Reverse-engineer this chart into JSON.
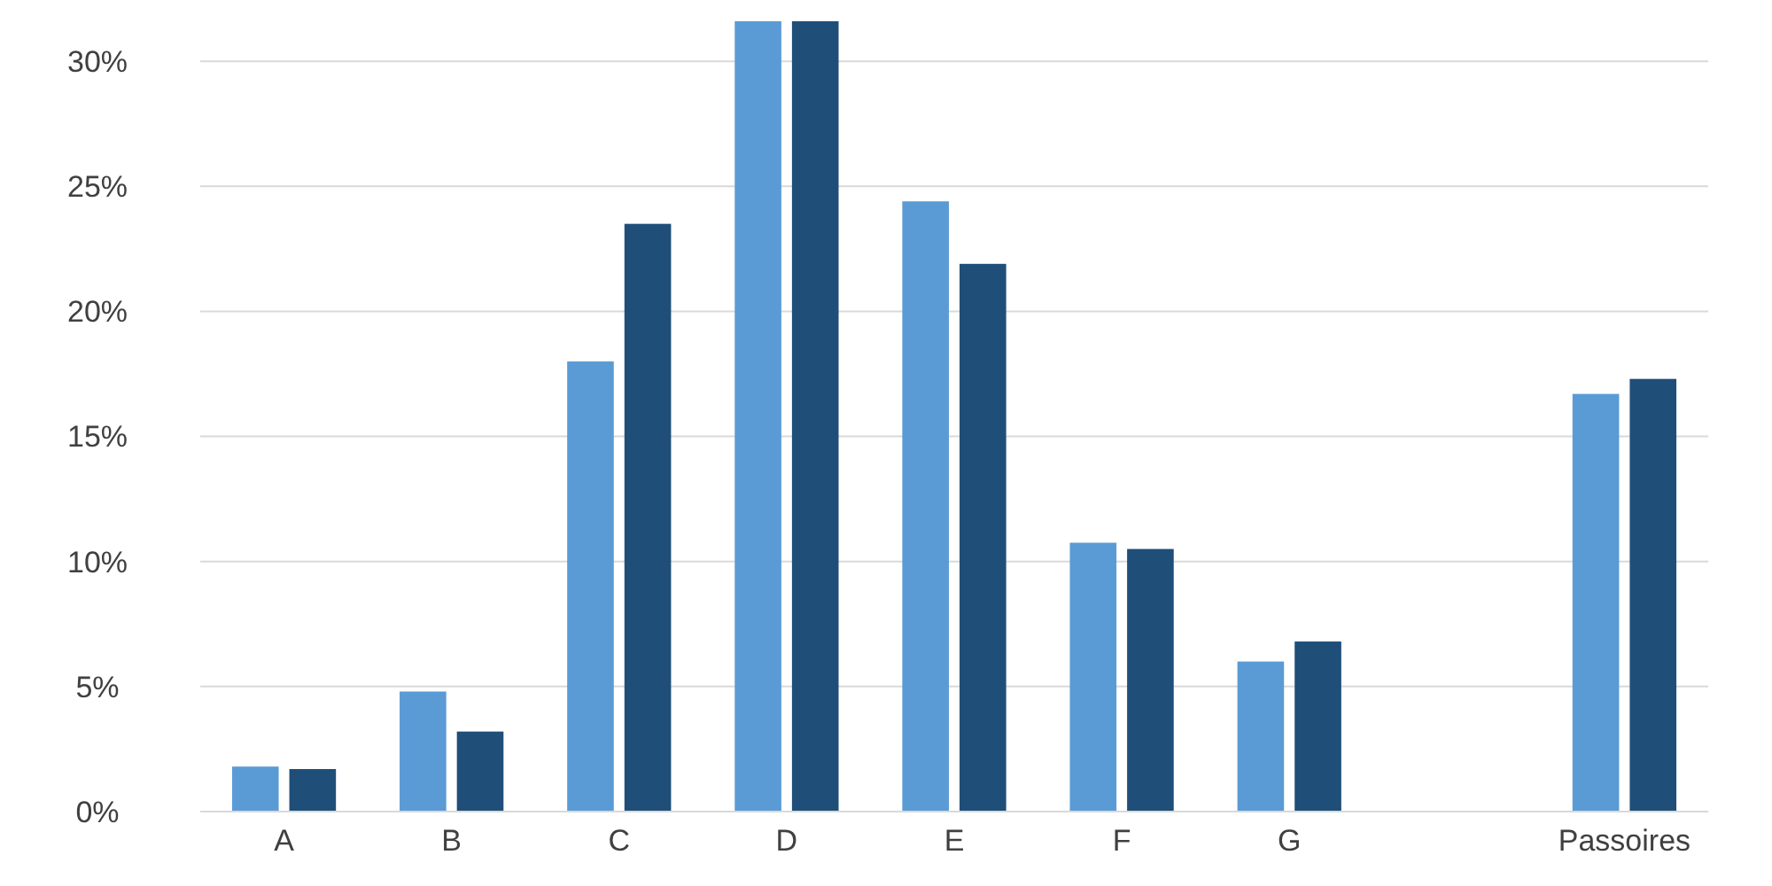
{
  "chart_data": {
    "type": "bar",
    "categories": [
      "A",
      "B",
      "C",
      "D",
      "E",
      "F",
      "G",
      null,
      "Passoires"
    ],
    "series": [
      {
        "color": "#5b9bd5",
        "values": [
          1.8,
          4.8,
          18.0,
          31.6,
          24.4,
          10.75,
          6.0,
          null,
          16.7
        ]
      },
      {
        "color": "#1f4e79",
        "values": [
          1.7,
          3.2,
          23.5,
          31.6,
          21.9,
          10.5,
          6.8,
          null,
          17.3
        ]
      }
    ],
    "ylim": [
      0,
      31.6
    ],
    "yticks": [
      {
        "value": 0,
        "label": "0%"
      },
      {
        "value": 5,
        "label": "5%"
      },
      {
        "value": 10,
        "label": "10%"
      },
      {
        "value": 15,
        "label": "15%"
      },
      {
        "value": 20,
        "label": "20%"
      },
      {
        "value": 25,
        "label": "25%"
      },
      {
        "value": 30,
        "label": "30%"
      }
    ],
    "grid": "y"
  }
}
